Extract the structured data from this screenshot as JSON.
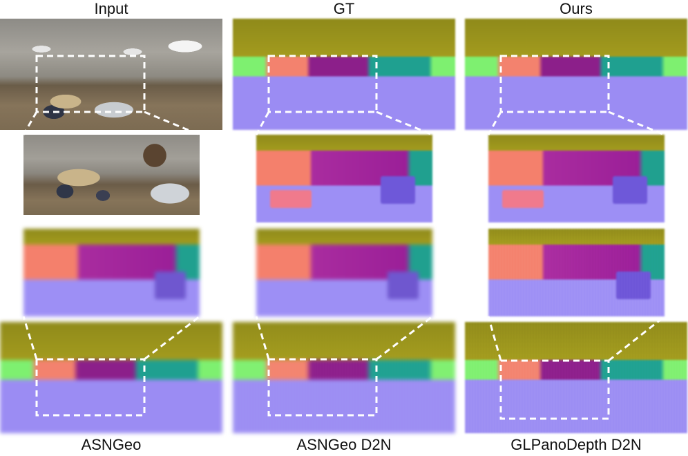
{
  "figure": {
    "column_titles": [
      "Input",
      "GT",
      "Ours"
    ],
    "row_captions": [
      "ASNGeo",
      "ASNGeo D2N",
      "GLPanoDepth D2N"
    ]
  },
  "colors": {
    "ceiling": "#9a931c",
    "floor": "#9b8cf3",
    "wall_left": "#7ef070",
    "wall_pink": "#f3826e",
    "wall_purple": "#8c1f8a",
    "wall_teal": "#1fa090",
    "zoom_box": "#ffffff"
  }
}
